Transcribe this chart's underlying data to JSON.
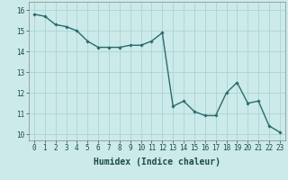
{
  "x": [
    0,
    1,
    2,
    3,
    4,
    5,
    6,
    7,
    8,
    9,
    10,
    11,
    12,
    13,
    14,
    15,
    16,
    17,
    18,
    19,
    20,
    21,
    22,
    23
  ],
  "y": [
    15.8,
    15.7,
    15.3,
    15.2,
    15.0,
    14.5,
    14.2,
    14.2,
    14.2,
    14.3,
    14.3,
    14.5,
    14.9,
    11.35,
    11.6,
    11.1,
    10.9,
    10.9,
    12.0,
    12.5,
    11.5,
    11.6,
    10.4,
    10.1
  ],
  "line_color": "#2a6b6b",
  "marker": "D",
  "marker_size": 1.8,
  "line_width": 1.0,
  "bg_color": "#cceaea",
  "grid_color": "#aad4d4",
  "xlabel": "Humidex (Indice chaleur)",
  "xlabel_fontsize": 7,
  "xlabel_bold": true,
  "yticks": [
    10,
    11,
    12,
    13,
    14,
    15,
    16
  ],
  "xticks": [
    0,
    1,
    2,
    3,
    4,
    5,
    6,
    7,
    8,
    9,
    10,
    11,
    12,
    13,
    14,
    15,
    16,
    17,
    18,
    19,
    20,
    21,
    22,
    23
  ],
  "ylim": [
    9.7,
    16.4
  ],
  "xlim": [
    -0.5,
    23.5
  ],
  "tick_fontsize": 5.5
}
